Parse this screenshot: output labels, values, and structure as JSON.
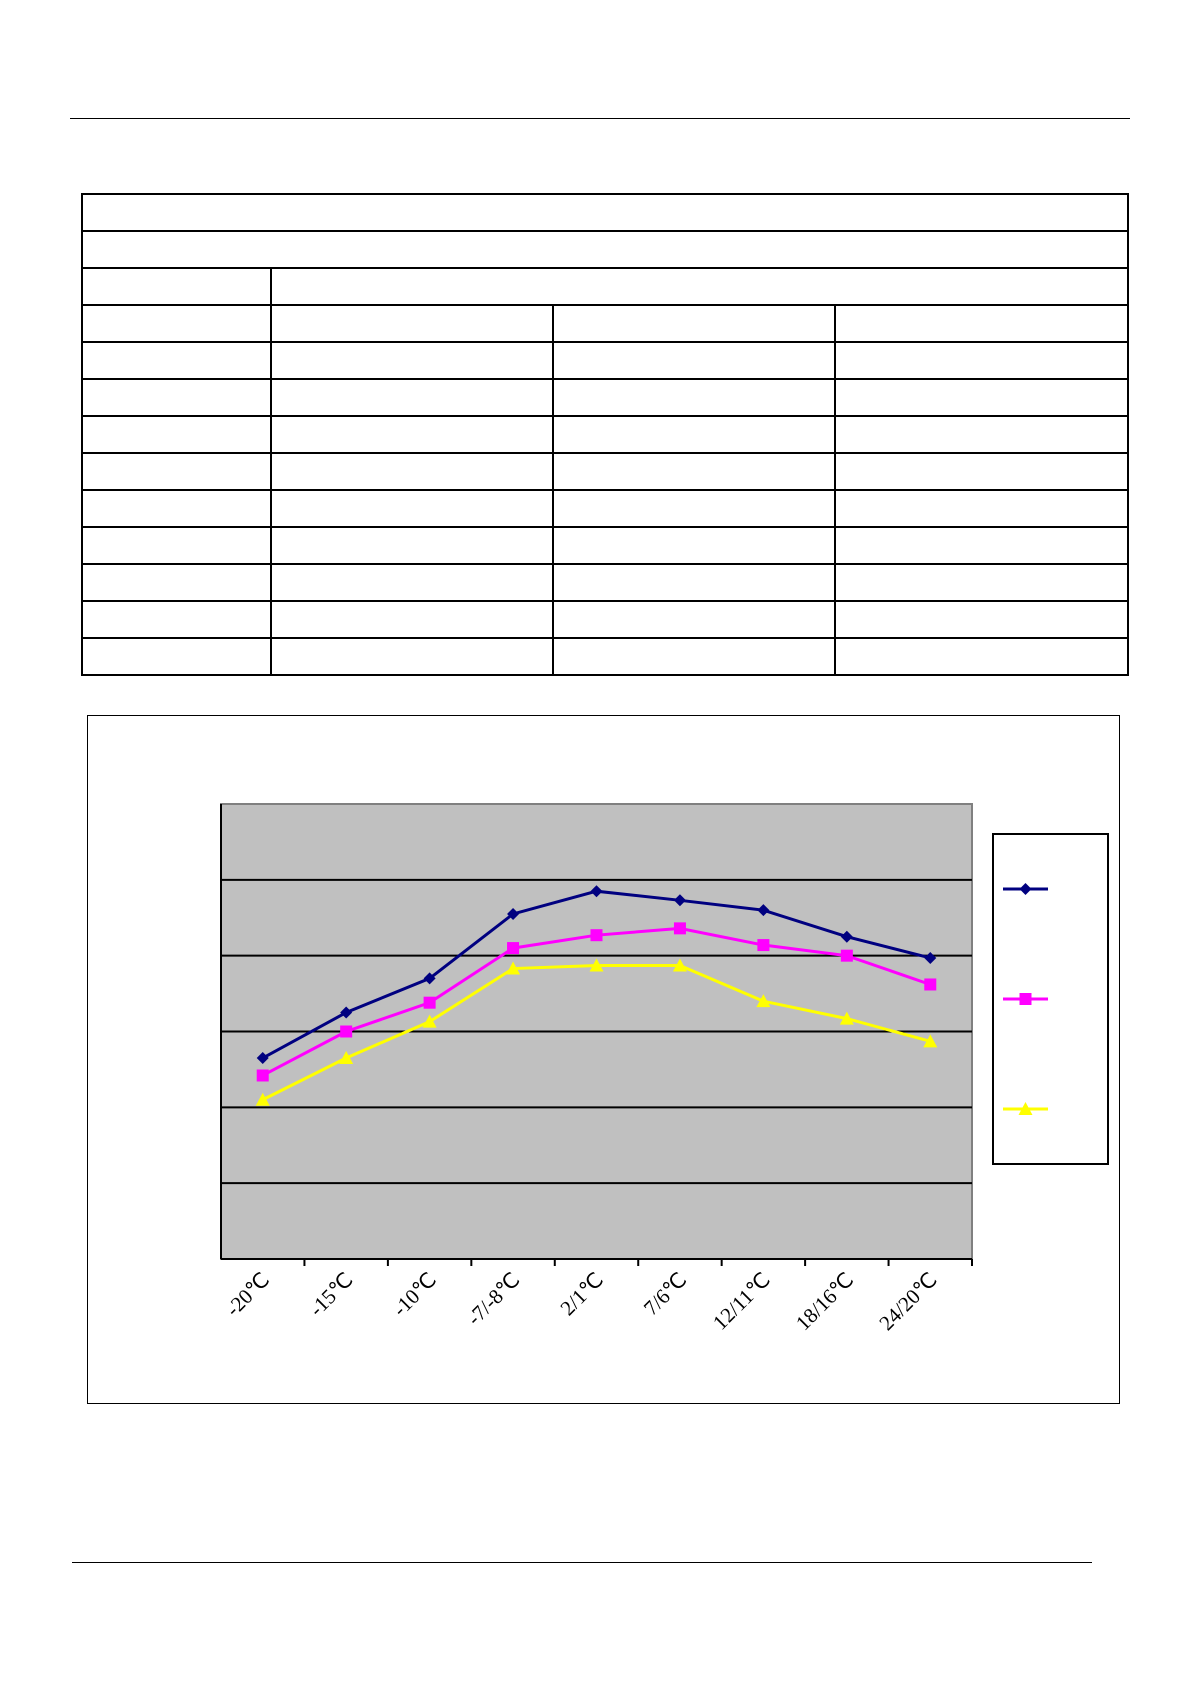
{
  "table": {
    "rows": [
      {
        "cells": [
          "",
          "",
          "",
          ""
        ]
      },
      {
        "cells": [
          "",
          "",
          "",
          ""
        ]
      },
      {
        "cells": [
          "",
          "",
          "",
          ""
        ]
      },
      {
        "cells": [
          "",
          "",
          "",
          ""
        ]
      },
      {
        "cells": [
          "",
          "",
          "",
          ""
        ]
      },
      {
        "cells": [
          "",
          "",
          "",
          ""
        ]
      },
      {
        "cells": [
          "",
          "",
          "",
          ""
        ]
      },
      {
        "cells": [
          "",
          "",
          "",
          ""
        ]
      },
      {
        "cells": [
          "",
          "",
          "",
          ""
        ]
      }
    ]
  },
  "chart_data": {
    "type": "line",
    "categories": [
      "-20℃",
      "-15℃",
      "-10℃",
      "-7/-8℃",
      "2/1℃",
      "7/6℃",
      "12/11℃",
      "18/16℃",
      "24/20℃"
    ],
    "series": [
      {
        "values": [
          2.65,
          3.25,
          3.7,
          4.55,
          4.85,
          4.73,
          4.6,
          4.25,
          3.97
        ],
        "color": "#000080",
        "marker": "diamond"
      },
      {
        "values": [
          2.42,
          3.0,
          3.38,
          4.1,
          4.27,
          4.36,
          4.14,
          4.0,
          3.62
        ],
        "color": "#ff00ff",
        "marker": "square"
      },
      {
        "values": [
          2.1,
          2.65,
          3.13,
          3.83,
          3.87,
          3.87,
          3.4,
          3.17,
          2.87
        ],
        "color": "#ffff00",
        "marker": "triangle"
      }
    ],
    "ylim": [
      0,
      6
    ],
    "grid": true,
    "legend": "right",
    "plot_background": "#c0c0c0"
  }
}
